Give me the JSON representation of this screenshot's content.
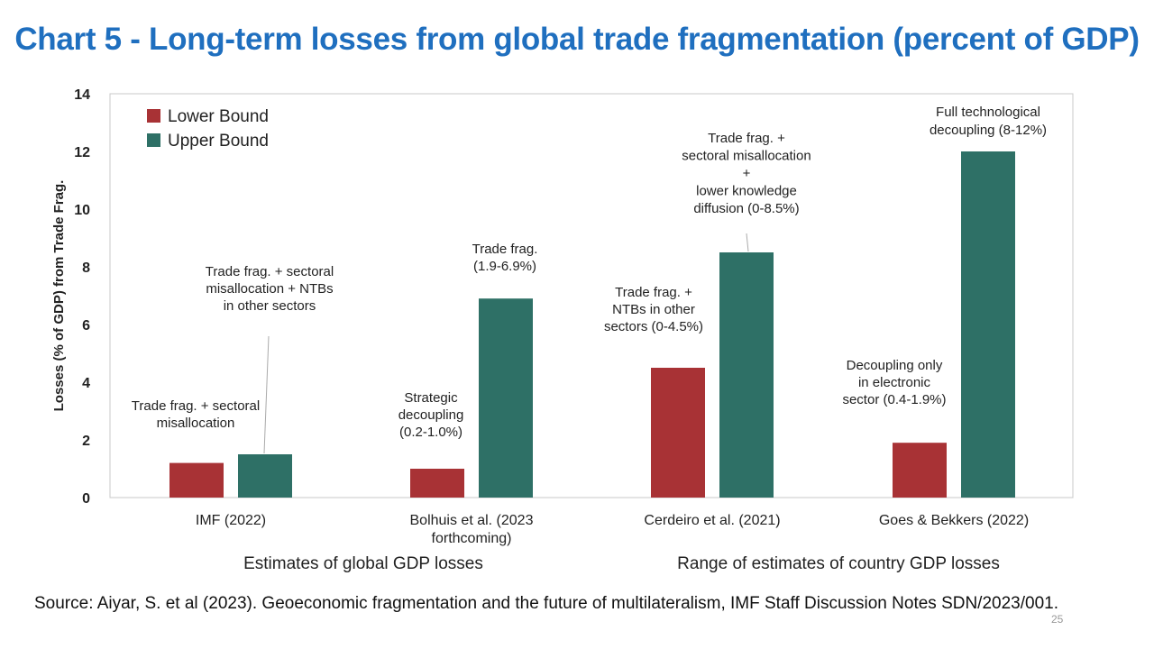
{
  "slide": {
    "title": "Chart 5 - Long-term losses from global trade fragmentation (percent of GDP)",
    "source": "Source: Aiyar, S. et al (2023). Geoeconomic fragmentation and the future of multilateralism, IMF Staff Discussion Notes SDN/2023/001.",
    "page_number": "25"
  },
  "chart_data": {
    "type": "bar",
    "ylabel": "Losses (% of GDP) from Trade Frag.",
    "ylim": [
      0,
      14
    ],
    "yticks": [
      0,
      2,
      4,
      6,
      8,
      10,
      12,
      14
    ],
    "categories": [
      [
        "IMF (2022)"
      ],
      [
        "Bolhuis et al. (2023",
        "forthcoming)"
      ],
      [
        "Cerdeiro et al. (2021)"
      ],
      [
        "Goes & Bekkers (2022)"
      ]
    ],
    "series": [
      {
        "name": "Lower Bound",
        "color": "#a83235",
        "values": [
          1.2,
          1.0,
          4.5,
          1.9
        ]
      },
      {
        "name": "Upper Bound",
        "color": "#2e7066",
        "values": [
          1.5,
          6.9,
          8.5,
          12.0
        ]
      }
    ],
    "group_labels": [
      "Estimates of global GDP losses",
      "Range of estimates of country GDP losses"
    ],
    "legend_position": "top-left",
    "annotations": [
      {
        "lines": [
          "Trade frag. + sectoral",
          "misallocation"
        ],
        "category": 0,
        "series": 0
      },
      {
        "lines": [
          "Trade frag. + sectoral",
          "misallocation + NTBs",
          "in other sectors"
        ],
        "category": 0,
        "series": 1
      },
      {
        "lines": [
          "Strategic",
          "decoupling",
          "(0.2-1.0%)"
        ],
        "category": 1,
        "series": 0
      },
      {
        "lines": [
          "Trade frag.",
          "(1.9-6.9%)"
        ],
        "category": 1,
        "series": 1
      },
      {
        "lines": [
          "Trade frag. +",
          "NTBs in other",
          "sectors (0-4.5%)"
        ],
        "category": 2,
        "series": 0
      },
      {
        "lines": [
          "Trade frag. +",
          "sectoral misallocation",
          "+",
          "lower knowledge",
          "diffusion (0-8.5%)"
        ],
        "category": 2,
        "series": 1
      },
      {
        "lines": [
          "Decoupling only",
          "in electronic",
          "sector (0.4-1.9%)"
        ],
        "category": 3,
        "series": 0
      },
      {
        "lines": [
          "Full technological",
          "decoupling (8-12%)"
        ],
        "category": 3,
        "series": 1
      }
    ]
  }
}
